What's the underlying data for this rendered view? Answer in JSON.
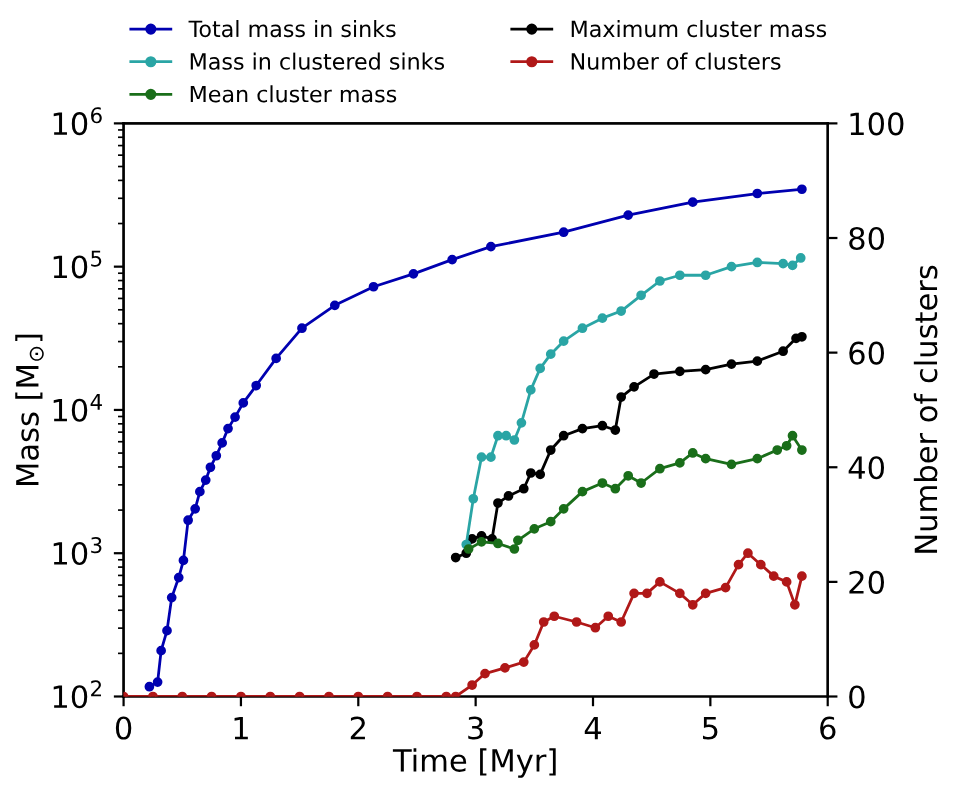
{
  "chart_data": {
    "type": "line",
    "xlabel": "Time [Myr]",
    "ylabel": "Mass [M$_{⊙}$]",
    "y2label": "Number of clusters",
    "log": "y",
    "xlim": [
      0,
      6
    ],
    "xticks": [
      0,
      1,
      2,
      3,
      4,
      5,
      6
    ],
    "ylim": [
      100,
      1000000
    ],
    "yticks": [
      {
        "value": 100,
        "label": "10$^{2}$"
      },
      {
        "value": 1000,
        "label": "10$^{3}$"
      },
      {
        "value": 10000,
        "label": "10$^{4}$"
      },
      {
        "value": 100000,
        "label": "10$^{5}$"
      },
      {
        "value": 1000000,
        "label": "10$^{6}$"
      }
    ],
    "y2lim": [
      0,
      100
    ],
    "y2ticks": [
      0,
      20,
      40,
      60,
      80,
      100
    ],
    "grid": false,
    "legend": "top",
    "marker": "circle",
    "line_style": "solid",
    "series": [
      {
        "name": "Total mass in sinks",
        "color": "#0000b0",
        "x": [
          0.22,
          0.29,
          0.32,
          0.37,
          0.41,
          0.47,
          0.51,
          0.55,
          0.61,
          0.65,
          0.7,
          0.74,
          0.79,
          0.84,
          0.89,
          0.95,
          1.02,
          1.13,
          1.3,
          1.52,
          1.8,
          2.13,
          2.47,
          2.8,
          3.13,
          3.75,
          4.3,
          4.85,
          5.4,
          5.78
        ],
        "values": [
          117,
          126,
          209,
          288,
          490,
          676,
          891,
          1700,
          2040,
          2690,
          3240,
          3980,
          4790,
          5890,
          7410,
          8910,
          11200,
          14800,
          22900,
          37200,
          53700,
          72400,
          89100,
          112000,
          138000,
          174000,
          229000,
          282000,
          324000,
          347000
        ]
      },
      {
        "name": "Mass in clustered sinks",
        "color": "#2aa5a5",
        "x": [
          2.92,
          2.98,
          3.05,
          3.13,
          3.19,
          3.26,
          3.33,
          3.39,
          3.47,
          3.55,
          3.64,
          3.75,
          3.91,
          4.08,
          4.24,
          4.41,
          4.57,
          4.74,
          4.96,
          5.18,
          5.4,
          5.62,
          5.7,
          5.77
        ],
        "values": [
          1150,
          2400,
          4680,
          4680,
          6610,
          6610,
          6170,
          8130,
          13800,
          19500,
          24500,
          30200,
          37200,
          43700,
          49000,
          63100,
          79400,
          87100,
          87100,
          100000,
          107000,
          105000,
          102000,
          115000
        ]
      },
      {
        "name": "Mean cluster mass",
        "color": "#1a6e1a",
        "x": [
          2.94,
          3.05,
          3.19,
          3.33,
          3.36,
          3.5,
          3.64,
          3.75,
          3.91,
          4.08,
          4.19,
          4.3,
          4.41,
          4.57,
          4.74,
          4.85,
          4.96,
          5.18,
          5.4,
          5.57,
          5.65,
          5.7,
          5.78
        ],
        "values": [
          1070,
          1200,
          1170,
          1070,
          1230,
          1480,
          1660,
          2040,
          2690,
          3090,
          2820,
          3470,
          3090,
          3890,
          4270,
          5010,
          4570,
          4170,
          4570,
          5250,
          5620,
          6610,
          5250
        ]
      },
      {
        "name": "Maximum cluster mass",
        "color": "#000000",
        "x": [
          2.83,
          2.92,
          2.97,
          3.05,
          3.14,
          3.19,
          3.28,
          3.41,
          3.47,
          3.55,
          3.64,
          3.75,
          3.91,
          4.08,
          4.19,
          4.24,
          4.35,
          4.52,
          4.74,
          4.96,
          5.18,
          5.4,
          5.62,
          5.73,
          5.78
        ],
        "values": [
          933,
          1000,
          1260,
          1320,
          1260,
          2240,
          2510,
          2820,
          3630,
          3550,
          5250,
          6610,
          7410,
          7760,
          7240,
          12300,
          14500,
          17800,
          18600,
          19100,
          20900,
          21900,
          25700,
          31600,
          32400
        ]
      },
      {
        "name": "Number of clusters",
        "color": "#b01818",
        "axis": "y2",
        "x": [
          0,
          0.25,
          0.5,
          0.75,
          1,
          1.25,
          1.5,
          1.75,
          2,
          2.25,
          2.5,
          2.75,
          2.83,
          2.97,
          3.08,
          3.25,
          3.41,
          3.5,
          3.58,
          3.67,
          3.86,
          4.02,
          4.13,
          4.24,
          4.35,
          4.46,
          4.57,
          4.74,
          4.85,
          4.96,
          5.13,
          5.24,
          5.32,
          5.43,
          5.54,
          5.65,
          5.72,
          5.78
        ],
        "values": [
          0,
          0,
          0,
          0,
          0,
          0,
          0,
          0,
          0,
          0,
          0,
          0,
          0,
          2,
          4,
          5,
          6,
          9,
          13,
          14,
          13,
          12,
          14,
          13,
          18,
          18,
          20,
          18,
          16,
          18,
          19,
          23,
          25,
          23,
          21,
          20,
          16,
          21
        ]
      }
    ]
  }
}
